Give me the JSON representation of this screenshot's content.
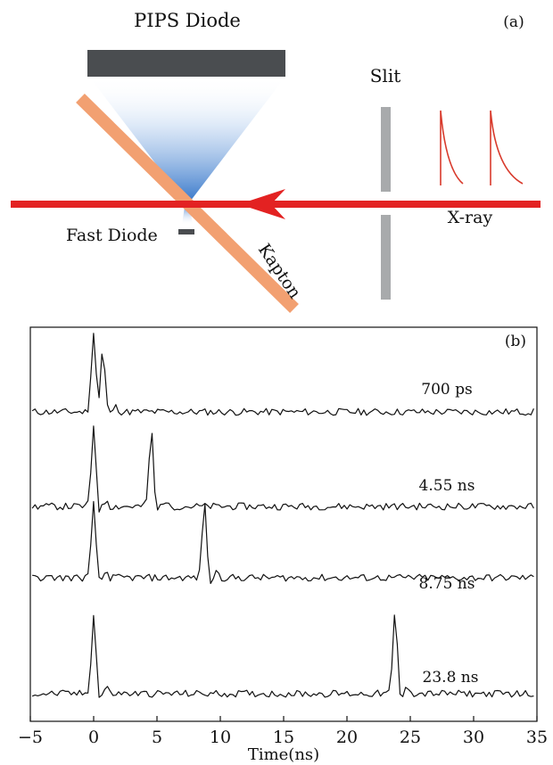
{
  "panel_a": {
    "label": "(a)",
    "pips_label": "PIPS Diode",
    "slit_label": "Slit",
    "fast_diode_label": "Fast Diode",
    "kapton_label": "Kapton",
    "xray_label": "X-ray",
    "colors": {
      "pips": "#4a4d50",
      "beam": "#e32222",
      "kapton": "#f2a071",
      "cone": "#2f72c8",
      "slit": "#a8aaac",
      "pulse": "#d83a2c"
    }
  },
  "chart_data": {
    "type": "line",
    "panel_label": "(b)",
    "xlabel": "Time(ns)",
    "xlim": [
      -5,
      35
    ],
    "xticks": [
      -5,
      0,
      5,
      10,
      15,
      20,
      25,
      30,
      35
    ],
    "grid": false,
    "series": [
      {
        "label": "700 ps",
        "peaks": [
          {
            "t": 0.0,
            "amp": 1.0
          },
          {
            "t": 0.7,
            "amp": 0.75
          }
        ]
      },
      {
        "label": "4.55 ns",
        "peaks": [
          {
            "t": 0.0,
            "amp": 1.0
          },
          {
            "t": 4.55,
            "amp": 0.92
          }
        ]
      },
      {
        "label": "8.75 ns",
        "peaks": [
          {
            "t": 0.0,
            "amp": 0.9
          },
          {
            "t": 8.75,
            "amp": 0.95
          }
        ]
      },
      {
        "label": "23.8 ns",
        "peaks": [
          {
            "t": 0.0,
            "amp": 0.98
          },
          {
            "t": 23.8,
            "amp": 0.98
          }
        ]
      }
    ]
  }
}
